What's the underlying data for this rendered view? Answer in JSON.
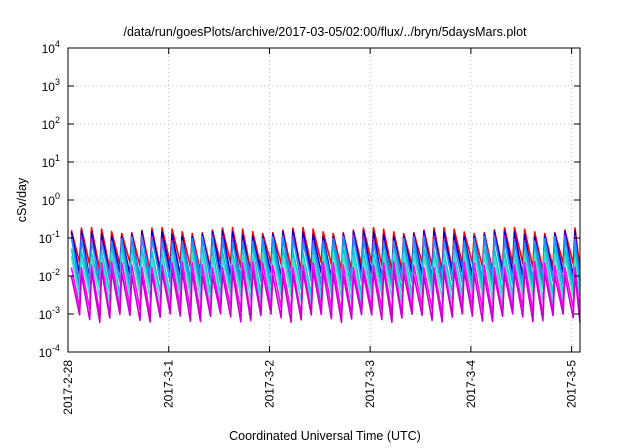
{
  "chart_data": {
    "type": "line",
    "title": "/data/run/goesPlots/archive/2017-03-05/02:00/flux/../bryn/5daysMars.plot",
    "xlabel": "Coordinated Universal Time (UTC)",
    "ylabel": "cSv/day",
    "yscale": "log",
    "ylim": [
      0.0001,
      10000
    ],
    "xlim": [
      "2017-2-28",
      "2017-3-5 02:00"
    ],
    "grid": true,
    "legend": "none",
    "x_tick_labels": [
      "2017-2-28",
      "2017-3-1",
      "2017-3-2",
      "2017-3-3",
      "2017-3-4",
      "2017-3-5"
    ],
    "y_ticks": [
      {
        "value": 0.0001,
        "base": "10",
        "exp": "-4"
      },
      {
        "value": 0.001,
        "base": "10",
        "exp": "-3"
      },
      {
        "value": 0.01,
        "base": "10",
        "exp": "-2"
      },
      {
        "value": 0.1,
        "base": "10",
        "exp": "-1"
      },
      {
        "value": 1,
        "base": "10",
        "exp": "0"
      },
      {
        "value": 10,
        "base": "10",
        "exp": "1"
      },
      {
        "value": 100,
        "base": "10",
        "exp": "2"
      },
      {
        "value": 1000,
        "base": "10",
        "exp": "3"
      },
      {
        "value": 10000,
        "base": "10",
        "exp": "4"
      }
    ],
    "sawtooth_period_hours": 2.4,
    "series": [
      {
        "color": "#ff0000",
        "peak": 0.16,
        "trough": 0.018
      },
      {
        "color": "#0000cc",
        "peak": 0.13,
        "trough": 0.01
      },
      {
        "color": "#a020f0",
        "peak": 0.1,
        "trough": 0.006
      },
      {
        "color": "#1e90ff",
        "peak": 0.09,
        "trough": 0.008
      },
      {
        "color": "#00cccc",
        "peak": 0.05,
        "trough": 0.004
      },
      {
        "color": "#40e0d0",
        "peak": 0.035,
        "trough": 0.0025
      },
      {
        "color": "#ff00ff",
        "peak": 0.02,
        "trough": 0.0012
      },
      {
        "color": "#cc00cc",
        "peak": 0.012,
        "trough": 0.0008
      }
    ]
  }
}
